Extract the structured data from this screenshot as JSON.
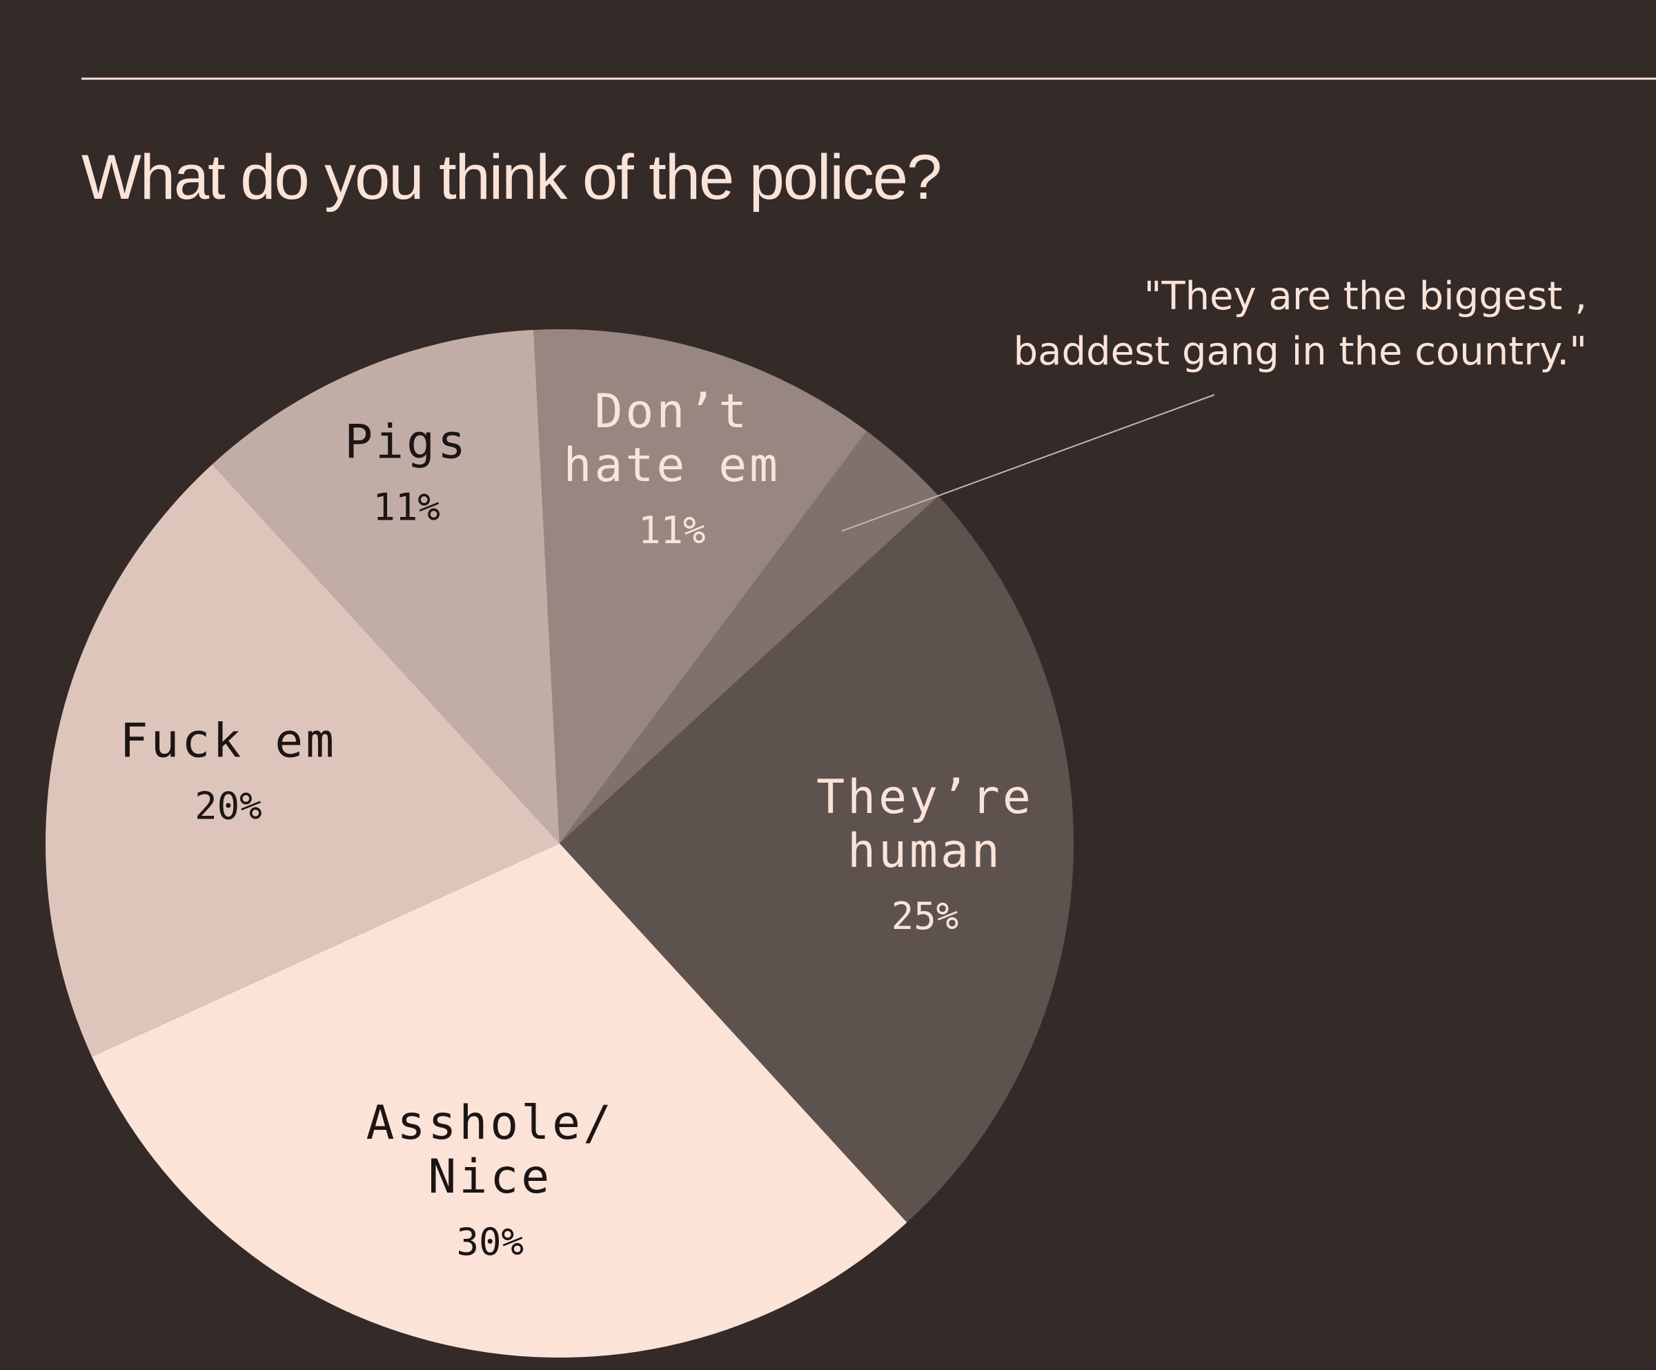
{
  "chart_data": {
    "type": "pie",
    "title": "What do you think of the police?",
    "slices": [
      {
        "label_lines": [
          "They’re",
          "human"
        ],
        "value": 25,
        "value_label": "25%",
        "color": "#5e524f",
        "label_color": "#fbe3d8"
      },
      {
        "label_lines": [
          "Asshole/",
          "Nice"
        ],
        "value": 30,
        "value_label": "30%",
        "color": "#fce3d8",
        "label_color": "#1c1514"
      },
      {
        "label_lines": [
          "Fuck em"
        ],
        "value": 20,
        "value_label": "20%",
        "color": "#dec5bb",
        "label_color": "#1c1514"
      },
      {
        "label_lines": [
          "Pigs"
        ],
        "value": 11,
        "value_label": "11%",
        "color": "#c2ada6",
        "label_color": "#1c1514"
      },
      {
        "label_lines": [
          "Don’t",
          "hate em"
        ],
        "value": 11,
        "value_label": "11%",
        "color": "#978780",
        "label_color": "#fbe3d8"
      },
      {
        "label_lines": [],
        "value": 3,
        "value_label": "",
        "color": "#7f716c",
        "label_color": "#fbe3d8"
      }
    ],
    "annotation": {
      "lines": [
        "\"They are the biggest ,",
        "baddest gang in the country.\""
      ],
      "slice_index": 5
    }
  },
  "colors": {
    "background": "#342a28",
    "text": "#fbe3d8",
    "rule": "#fbe3d8",
    "leader": "#c9b5ad"
  }
}
